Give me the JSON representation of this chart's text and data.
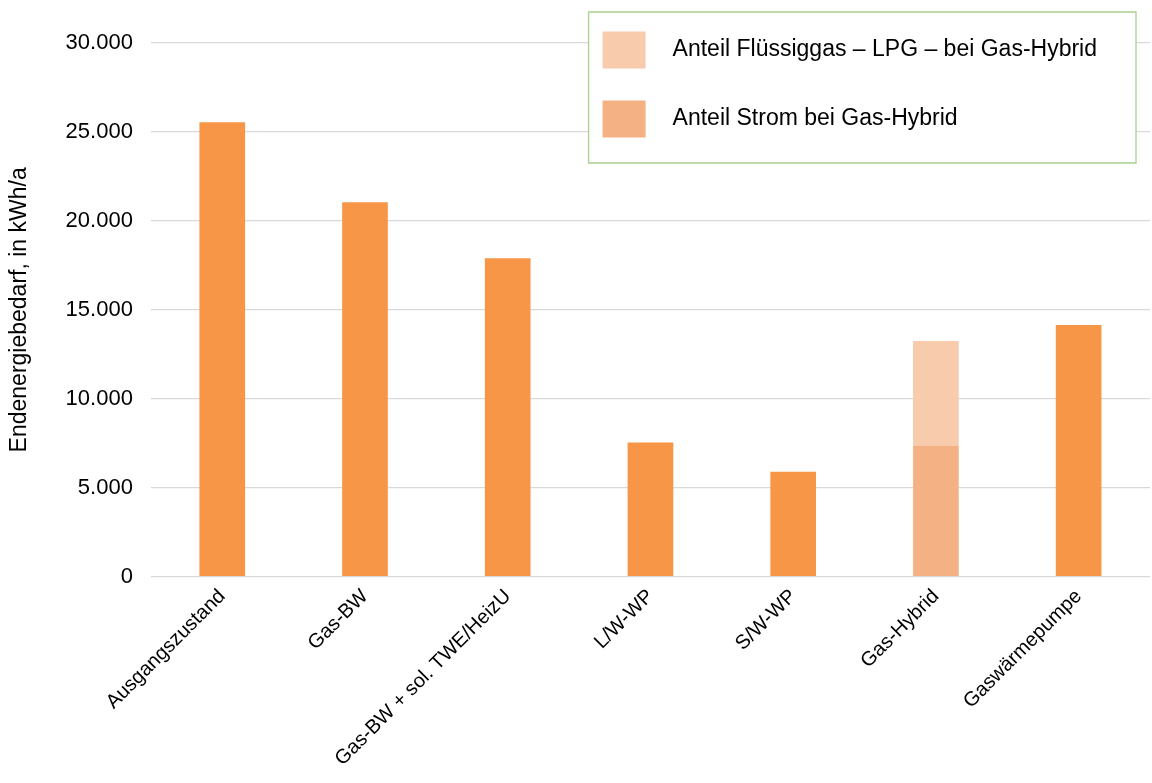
{
  "chart_data": {
    "type": "bar",
    "stacked": true,
    "categories": [
      "Ausgangszustand",
      "Gas-BW",
      "Gas-BW + sol. TWE/HeizU",
      "L/W-WP",
      "S/W-WP",
      "Gas-Hybrid",
      "Gaswärmepumpe"
    ],
    "series": [
      {
        "color": "#f79646",
        "values": [
          25550,
          21050,
          17900,
          7550,
          5900,
          null,
          14150
        ]
      },
      {
        "name": "Anteil Strom bei Gas-Hybrid",
        "color": "#f4b183",
        "values": [
          null,
          null,
          null,
          null,
          null,
          7350,
          null
        ]
      },
      {
        "name": "Anteil Flüssiggas – LPG – bei Gas-Hybrid",
        "color": "#f8cbad",
        "values": [
          null,
          null,
          null,
          null,
          null,
          5900,
          null
        ]
      }
    ],
    "ylabel": "Endenergiebedarf, in kWh/a",
    "ylim": [
      0,
      30000
    ],
    "yticks": [
      0,
      {
        "value": 5000,
        "label": "5.000"
      },
      {
        "value": 10000,
        "label": "10.000"
      },
      {
        "value": 15000,
        "label": "15.000"
      },
      {
        "value": 20000,
        "label": "20.000"
      },
      {
        "value": 25000,
        "label": "25.000"
      },
      {
        "value": 30000,
        "label": "30.000"
      }
    ],
    "grid": "y",
    "legend": "top right"
  }
}
